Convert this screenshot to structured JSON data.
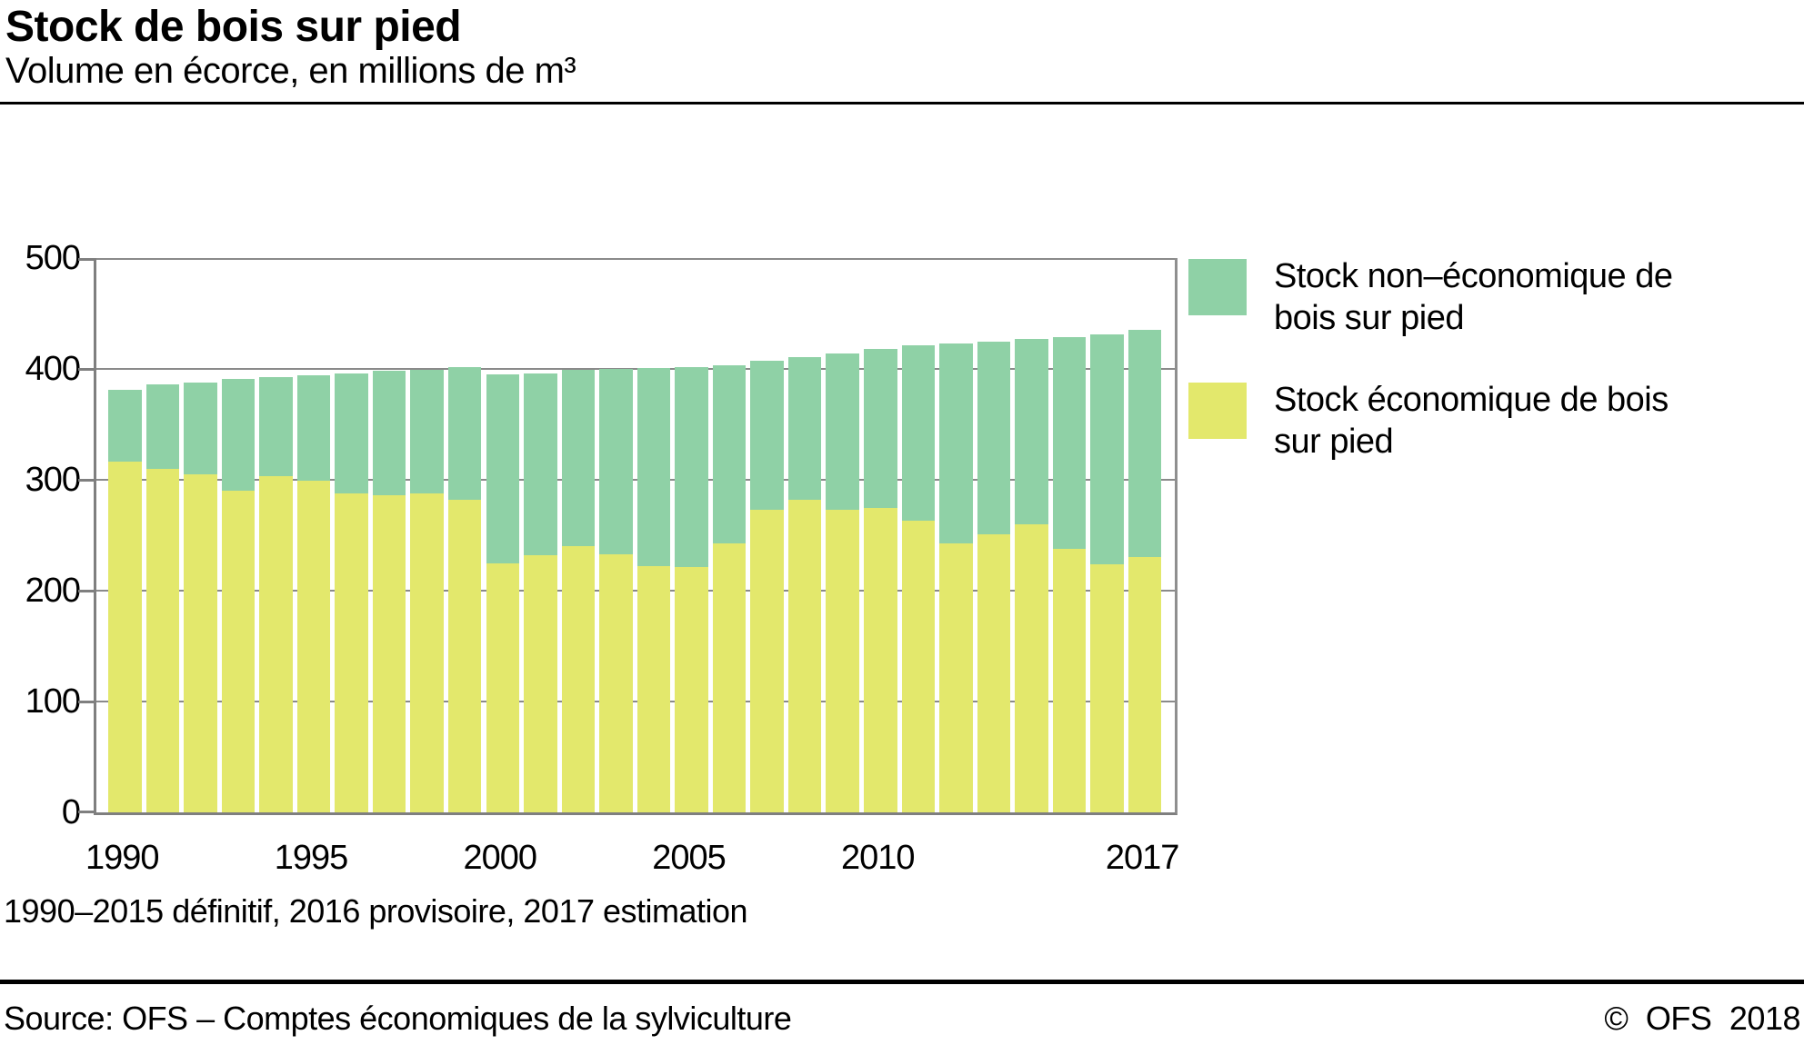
{
  "header": {
    "title": "Stock de bois sur pied",
    "subtitle": "Volume en écorce, en millions de m³"
  },
  "chart_data": {
    "type": "bar",
    "stacked": true,
    "title": "Stock de bois sur pied",
    "subtitle": "Volume en écorce, en millions de m³",
    "unit": "millions de m³",
    "years": [
      1990,
      1991,
      1992,
      1993,
      1994,
      1995,
      1996,
      1997,
      1998,
      1999,
      2000,
      2001,
      2002,
      2003,
      2004,
      2005,
      2006,
      2007,
      2008,
      2009,
      2010,
      2011,
      2012,
      2013,
      2014,
      2015,
      2016,
      2017
    ],
    "series": [
      {
        "name": "Stock économique de bois sur pied",
        "color": "#e3e86c",
        "stack_order": "bottom",
        "values": [
          316,
          310,
          305,
          290,
          303,
          299,
          288,
          286,
          288,
          282,
          225,
          232,
          240,
          233,
          222,
          221,
          243,
          273,
          282,
          273,
          275,
          263,
          243,
          251,
          260,
          238,
          224,
          230
        ]
      },
      {
        "name": "Stock non–économique de bois sur pied",
        "color": "#8fd1a6",
        "stack_order": "top",
        "values": [
          65,
          76,
          83,
          101,
          90,
          95,
          108,
          112,
          111,
          120,
          170,
          164,
          159,
          167,
          179,
          181,
          160,
          134,
          129,
          141,
          143,
          158,
          180,
          174,
          167,
          191,
          207,
          205
        ]
      }
    ],
    "totals": [
      381,
      386,
      388,
      391,
      393,
      394,
      396,
      398,
      399,
      402,
      395,
      396,
      399,
      400,
      401,
      402,
      403,
      407,
      411,
      414,
      418,
      421,
      423,
      425,
      427,
      429,
      431,
      435
    ],
    "ylim": [
      0,
      500
    ],
    "yticks": [
      0,
      100,
      200,
      300,
      400,
      500
    ],
    "xticks": [
      1990,
      1995,
      2000,
      2005,
      2010,
      2017
    ],
    "grid": "horizontal",
    "legend_position": "right"
  },
  "legend": {
    "items": [
      {
        "line1": "Stock non–économique de",
        "line2": "bois sur pied",
        "color": "#8fd1a6"
      },
      {
        "line1": "Stock économique de bois",
        "line2": "sur pied",
        "color": "#e3e86c"
      }
    ]
  },
  "footnote": "1990–2015 définitif, 2016 provisoire, 2017 estimation",
  "footer": {
    "source": "Source: OFS – Comptes économiques de la sylviculture",
    "copyright": "© OFS 2018"
  },
  "colors": {
    "bar_economic": "#e3e86c",
    "bar_non_economic": "#8fd1a6",
    "grid": "#8a8a8a",
    "axis": "#7f7f7f",
    "rule": "#000000"
  }
}
